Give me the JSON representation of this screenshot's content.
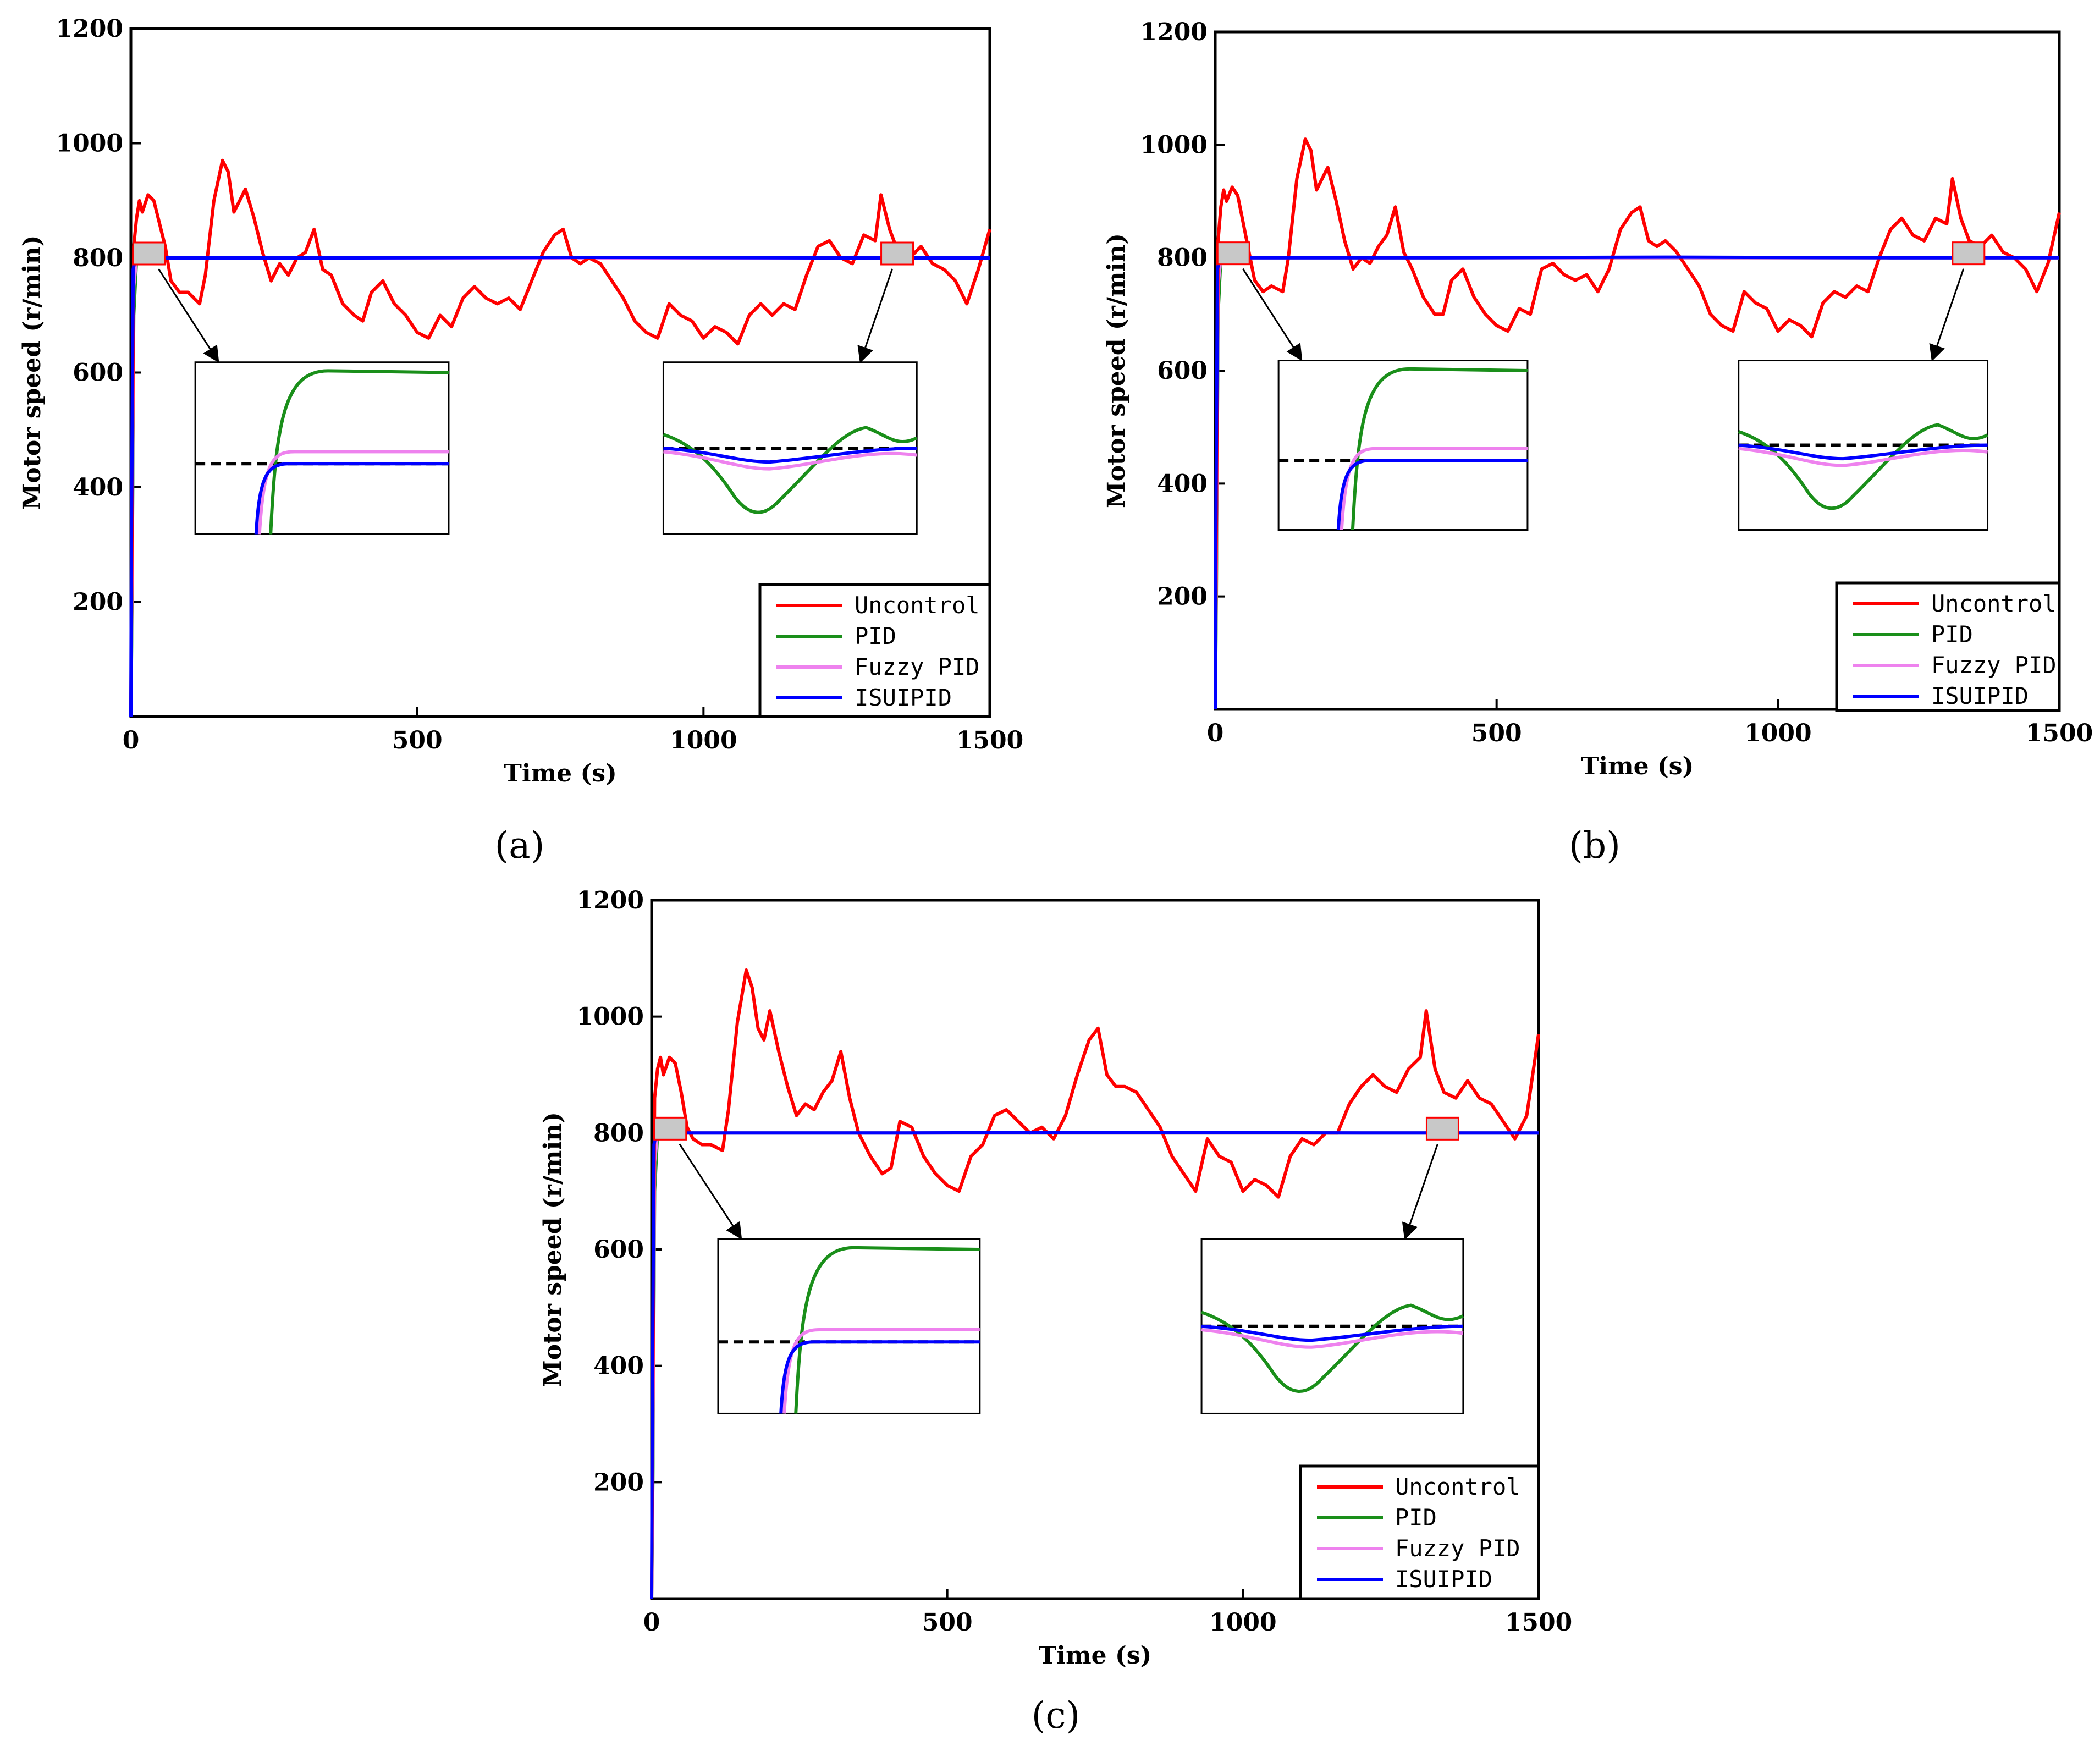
{
  "figure": {
    "panel_labels": [
      "(a)",
      "(b)",
      "(c)"
    ]
  },
  "colors": {
    "uncontrol": "#ff0000",
    "pid": "#1a8f1a",
    "fuzzy_pid": "#ee82ee",
    "isuipid": "#0000ff",
    "reference": "#000000"
  },
  "chart_data": [
    {
      "type": "line",
      "label": "(a)",
      "xlabel": "Time (s)",
      "ylabel": "Motor speed (r/min)",
      "xlim": [
        0,
        1500
      ],
      "ylim": [
        0,
        1200
      ],
      "xticks": [
        0,
        500,
        1000,
        1500
      ],
      "yticks": [
        200,
        400,
        600,
        800,
        1000,
        1200
      ],
      "legend": [
        "Uncontrol",
        "PID",
        "Fuzzy PID",
        "ISUIPID"
      ],
      "series": [
        {
          "name": "Uncontrol",
          "x": [
            0,
            5,
            10,
            15,
            20,
            30,
            40,
            50,
            60,
            70,
            85,
            100,
            120,
            130,
            145,
            160,
            170,
            180,
            190,
            200,
            215,
            230,
            245,
            260,
            275,
            290,
            305,
            320,
            335,
            350,
            370,
            390,
            405,
            420,
            440,
            460,
            480,
            500,
            520,
            540,
            560,
            580,
            600,
            620,
            640,
            660,
            680,
            700,
            720,
            740,
            755,
            770,
            785,
            800,
            820,
            840,
            860,
            880,
            900,
            920,
            940,
            960,
            980,
            1000,
            1020,
            1040,
            1060,
            1080,
            1100,
            1120,
            1140,
            1160,
            1180,
            1200,
            1220,
            1240,
            1260,
            1280,
            1300,
            1310,
            1325,
            1340,
            1360,
            1380,
            1400,
            1420,
            1440,
            1460,
            1480,
            1500
          ],
          "y": [
            0,
            820,
            870,
            900,
            880,
            910,
            900,
            860,
            820,
            760,
            740,
            740,
            720,
            770,
            900,
            970,
            950,
            880,
            900,
            920,
            870,
            810,
            760,
            790,
            770,
            800,
            810,
            850,
            780,
            770,
            720,
            700,
            690,
            740,
            760,
            720,
            700,
            670,
            660,
            700,
            680,
            730,
            750,
            730,
            720,
            730,
            710,
            760,
            810,
            840,
            850,
            800,
            790,
            800,
            790,
            760,
            730,
            690,
            670,
            660,
            720,
            700,
            690,
            660,
            680,
            670,
            650,
            700,
            720,
            700,
            720,
            710,
            770,
            820,
            830,
            800,
            790,
            840,
            830,
            910,
            850,
            810,
            800,
            820,
            790,
            780,
            760,
            720,
            780,
            850
          ]
        },
        {
          "name": "PID",
          "x": [
            0,
            2,
            5,
            10,
            1500
          ],
          "y": [
            0,
            200,
            700,
            800,
            800
          ]
        },
        {
          "name": "Fuzzy PID",
          "x": [
            0,
            2,
            5,
            10,
            1500
          ],
          "y": [
            0,
            250,
            750,
            800,
            800
          ]
        },
        {
          "name": "ISUIPID",
          "x": [
            0,
            1,
            4,
            8,
            100,
            400,
            800,
            1200,
            1500
          ],
          "y": [
            0,
            300,
            780,
            800,
            800,
            800,
            801,
            800,
            800
          ]
        }
      ]
    },
    {
      "type": "line",
      "label": "(b)",
      "xlabel": "Time (s)",
      "ylabel": "Motor speed (r/min)",
      "xlim": [
        0,
        1500
      ],
      "ylim": [
        0,
        1200
      ],
      "xticks": [
        0,
        500,
        1000,
        1500
      ],
      "yticks": [
        200,
        400,
        600,
        800,
        1000,
        1200
      ],
      "legend": [
        "Uncontrol",
        "PID",
        "Fuzzy PID",
        "ISUIPID"
      ],
      "series": [
        {
          "name": "Uncontrol",
          "x": [
            0,
            5,
            10,
            15,
            20,
            30,
            40,
            50,
            60,
            70,
            85,
            100,
            120,
            130,
            145,
            160,
            170,
            180,
            190,
            200,
            215,
            230,
            245,
            260,
            275,
            290,
            305,
            320,
            335,
            350,
            370,
            390,
            405,
            420,
            440,
            460,
            480,
            500,
            520,
            540,
            560,
            580,
            600,
            620,
            640,
            660,
            680,
            700,
            720,
            740,
            755,
            770,
            785,
            800,
            820,
            840,
            860,
            880,
            900,
            920,
            940,
            960,
            980,
            1000,
            1020,
            1040,
            1060,
            1080,
            1100,
            1120,
            1140,
            1160,
            1180,
            1200,
            1220,
            1240,
            1260,
            1280,
            1300,
            1310,
            1325,
            1340,
            1360,
            1380,
            1400,
            1420,
            1440,
            1460,
            1480,
            1500
          ],
          "y": [
            0,
            830,
            890,
            920,
            900,
            925,
            910,
            860,
            810,
            760,
            740,
            750,
            740,
            800,
            940,
            1010,
            990,
            920,
            940,
            960,
            900,
            830,
            780,
            800,
            790,
            820,
            840,
            890,
            810,
            780,
            730,
            700,
            700,
            760,
            780,
            730,
            700,
            680,
            670,
            710,
            700,
            780,
            790,
            770,
            760,
            770,
            740,
            780,
            850,
            880,
            890,
            830,
            820,
            830,
            810,
            780,
            750,
            700,
            680,
            670,
            740,
            720,
            710,
            670,
            690,
            680,
            660,
            720,
            740,
            730,
            750,
            740,
            800,
            850,
            870,
            840,
            830,
            870,
            860,
            940,
            870,
            830,
            820,
            840,
            810,
            800,
            780,
            740,
            790,
            880
          ]
        },
        {
          "name": "PID",
          "x": [
            0,
            2,
            5,
            10,
            1500
          ],
          "y": [
            0,
            200,
            700,
            800,
            800
          ]
        },
        {
          "name": "Fuzzy PID",
          "x": [
            0,
            2,
            5,
            10,
            1500
          ],
          "y": [
            0,
            250,
            750,
            800,
            800
          ]
        },
        {
          "name": "ISUIPID",
          "x": [
            0,
            1,
            4,
            8,
            100,
            400,
            800,
            1200,
            1500
          ],
          "y": [
            0,
            300,
            780,
            800,
            800,
            800,
            801,
            800,
            800
          ]
        }
      ]
    },
    {
      "type": "line",
      "label": "(c)",
      "xlabel": "Time (s)",
      "ylabel": "Motor speed (r/min)",
      "xlim": [
        0,
        1500
      ],
      "ylim": [
        0,
        1200
      ],
      "xticks": [
        0,
        500,
        1000,
        1500
      ],
      "yticks": [
        200,
        400,
        600,
        800,
        1000,
        1200
      ],
      "legend": [
        "Uncontrol",
        "PID",
        "Fuzzy PID",
        "ISUIPID"
      ],
      "series": [
        {
          "name": "Uncontrol",
          "x": [
            0,
            5,
            10,
            15,
            20,
            30,
            40,
            50,
            60,
            70,
            85,
            100,
            120,
            130,
            145,
            160,
            170,
            180,
            190,
            200,
            215,
            230,
            245,
            260,
            275,
            290,
            305,
            320,
            335,
            350,
            370,
            390,
            405,
            420,
            440,
            460,
            480,
            500,
            520,
            540,
            560,
            580,
            600,
            620,
            640,
            660,
            680,
            700,
            720,
            740,
            755,
            770,
            785,
            800,
            820,
            840,
            860,
            880,
            900,
            920,
            940,
            960,
            980,
            1000,
            1020,
            1040,
            1060,
            1080,
            1100,
            1120,
            1140,
            1160,
            1180,
            1200,
            1220,
            1240,
            1260,
            1280,
            1300,
            1310,
            1325,
            1340,
            1360,
            1380,
            1400,
            1420,
            1440,
            1460,
            1480,
            1500
          ],
          "y": [
            0,
            860,
            910,
            930,
            900,
            930,
            920,
            870,
            810,
            790,
            780,
            780,
            770,
            840,
            990,
            1080,
            1050,
            980,
            960,
            1010,
            940,
            880,
            830,
            850,
            840,
            870,
            890,
            940,
            860,
            800,
            760,
            730,
            740,
            820,
            810,
            760,
            730,
            710,
            700,
            760,
            780,
            830,
            840,
            820,
            800,
            810,
            790,
            830,
            900,
            960,
            980,
            900,
            880,
            880,
            870,
            840,
            810,
            760,
            730,
            700,
            790,
            760,
            750,
            700,
            720,
            710,
            690,
            760,
            790,
            780,
            800,
            800,
            850,
            880,
            900,
            880,
            870,
            910,
            930,
            1010,
            910,
            870,
            860,
            890,
            860,
            850,
            820,
            790,
            830,
            970
          ]
        },
        {
          "name": "PID",
          "x": [
            0,
            2,
            5,
            10,
            1500
          ],
          "y": [
            0,
            200,
            700,
            800,
            800
          ]
        },
        {
          "name": "Fuzzy PID",
          "x": [
            0,
            2,
            5,
            10,
            1500
          ],
          "y": [
            0,
            250,
            750,
            800,
            800
          ]
        },
        {
          "name": "ISUIPID",
          "x": [
            0,
            1,
            4,
            8,
            100,
            400,
            800,
            1200,
            1500
          ],
          "y": [
            0,
            300,
            780,
            800,
            800,
            800,
            801,
            800,
            800
          ]
        }
      ]
    }
  ]
}
